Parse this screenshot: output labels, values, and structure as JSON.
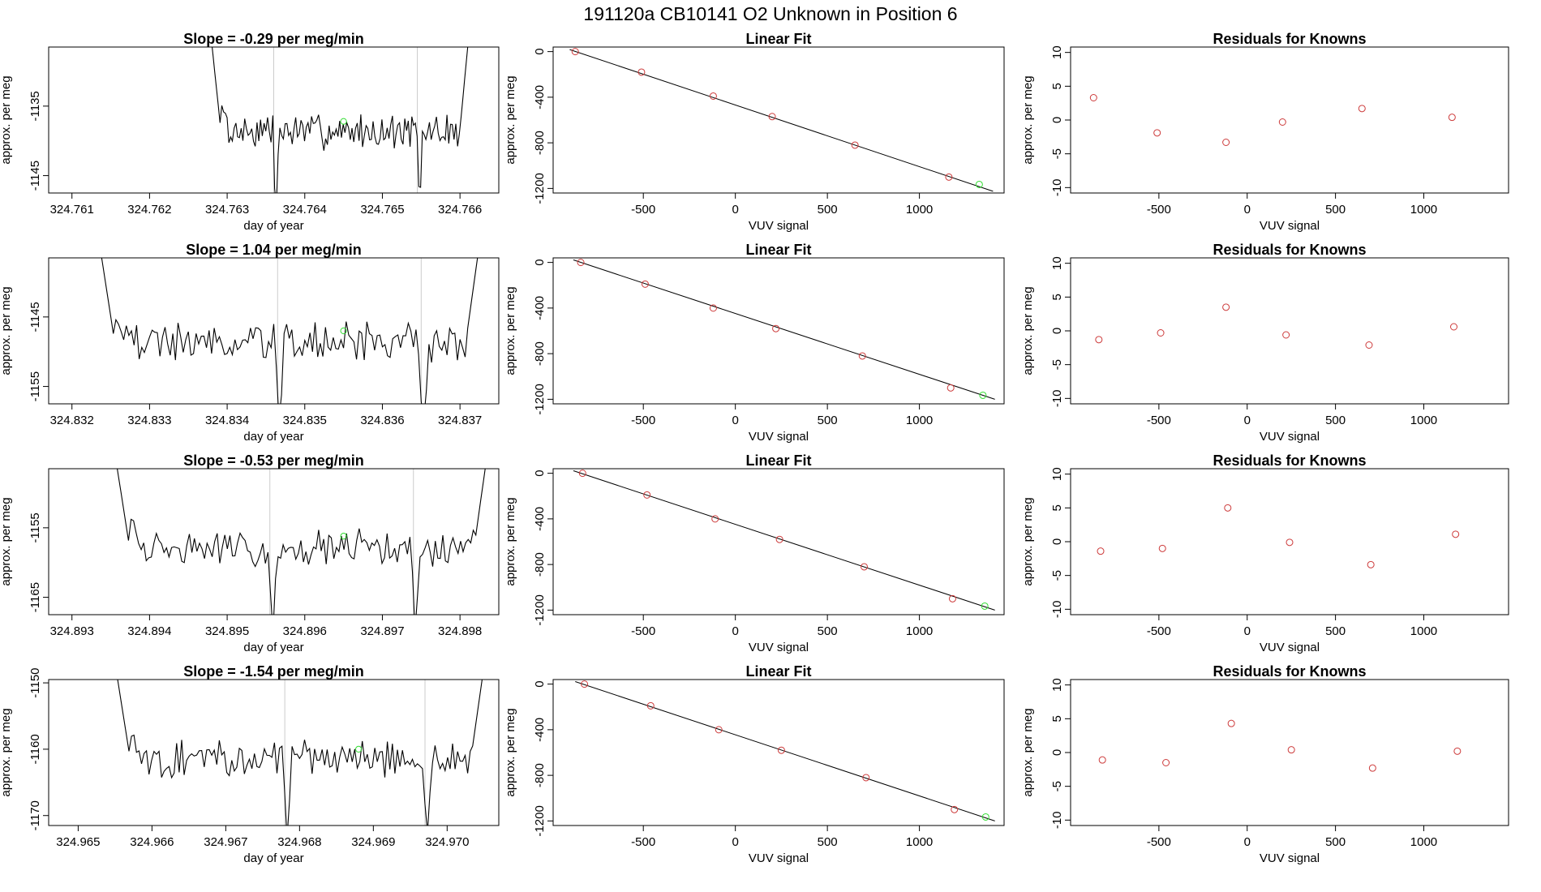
{
  "figure": {
    "title": "191120a      CB10141    O2 Unknown in Position  6",
    "colors": {
      "line": "#000000",
      "known_point": "#cd3b3b",
      "unknown_point": "#33dd33",
      "divider": "#cccccc"
    }
  },
  "chart_data": [
    {
      "type": "line",
      "panel": "drift",
      "row": 1,
      "title": "Slope =  -0.29  per meg/min",
      "xlabel": "day of year",
      "ylabel": "approx. per meg",
      "xticks": [
        "324.761",
        "324.762",
        "324.763",
        "324.764",
        "324.765",
        "324.766"
      ],
      "xlim": [
        324.7607,
        324.7665
      ],
      "yticks": [
        "-1135",
        "-1145"
      ],
      "ylim": [
        -1147.5,
        -1126.5
      ],
      "vlines": [
        324.7636,
        324.76545
      ],
      "start": 324.76275,
      "end": 324.76615,
      "level": -1138.6,
      "amp": 2.1,
      "seed": 7,
      "marker": {
        "x": 324.7645,
        "y": -1137.2
      }
    },
    {
      "type": "line",
      "panel": "drift",
      "row": 2,
      "title": "Slope =  1.04  per meg/min",
      "xlabel": "day of year",
      "ylabel": "approx. per meg",
      "xticks": [
        "324.832",
        "324.833",
        "324.834",
        "324.835",
        "324.836",
        "324.837"
      ],
      "xlim": [
        324.8317,
        324.8375
      ],
      "yticks": [
        "-1145",
        "-1155"
      ],
      "ylim": [
        -1157.5,
        -1136.5
      ],
      "vlines": [
        324.83465,
        324.8365
      ],
      "start": 324.8323,
      "end": 324.8373,
      "level": -1148.6,
      "amp": 2.4,
      "seed": 19,
      "marker": {
        "x": 324.8355,
        "y": -1147.0
      }
    },
    {
      "type": "line",
      "panel": "drift",
      "row": 3,
      "title": "Slope =  -0.53  per meg/min",
      "xlabel": "day of year",
      "ylabel": "approx. per meg",
      "xticks": [
        "324.893",
        "324.894",
        "324.895",
        "324.896",
        "324.897",
        "324.898"
      ],
      "xlim": [
        324.8927,
        324.8985
      ],
      "yticks": [
        "-1155",
        "-1165"
      ],
      "ylim": [
        -1167.5,
        -1146.5
      ],
      "vlines": [
        324.89555,
        324.8974
      ],
      "start": 324.8935,
      "end": 324.8984,
      "level": -1158.0,
      "amp": 2.2,
      "seed": 31,
      "marker": {
        "x": 324.8965,
        "y": -1156.2
      }
    },
    {
      "type": "line",
      "panel": "drift",
      "row": 4,
      "title": "Slope =  -1.54  per meg/min",
      "xlabel": "day of year",
      "ylabel": "approx. per meg",
      "xticks": [
        "324.965",
        "324.966",
        "324.967",
        "324.968",
        "324.969",
        "324.970"
      ],
      "xlim": [
        324.9646,
        324.9707
      ],
      "yticks": [
        "-1150",
        "-1160",
        "-1170"
      ],
      "ylim": [
        -1171.5,
        -1149.5
      ],
      "vlines": [
        324.9678,
        324.9697
      ],
      "start": 324.96545,
      "end": 324.97055,
      "level": -1161.5,
      "amp": 2.3,
      "seed": 43,
      "marker": {
        "x": 324.9688,
        "y": -1160.0
      }
    },
    {
      "type": "scatter",
      "panel": "fit",
      "row": 1,
      "title": "Linear Fit",
      "xlabel": "VUV signal",
      "ylabel": "approx. per meg",
      "xticks": [
        -500,
        0,
        500,
        1000
      ],
      "yticks": [
        0,
        -400,
        -800,
        -1200
      ],
      "xlim": [
        -990,
        1460
      ],
      "ylim": [
        -1240,
        40
      ],
      "x": [
        -870,
        -510,
        -120,
        200,
        650,
        1160
      ],
      "y": [
        0,
        -180,
        -390,
        -570,
        -820,
        -1100
      ],
      "fit_line": {
        "x": [
          -900,
          1400
        ],
        "y": [
          18,
          -1225
        ]
      },
      "unknown": {
        "x": 1325,
        "y": -1165
      }
    },
    {
      "type": "scatter",
      "panel": "fit",
      "row": 2,
      "title": "Linear Fit",
      "xlabel": "VUV signal",
      "ylabel": "approx. per meg",
      "xticks": [
        -500,
        0,
        500,
        1000
      ],
      "yticks": [
        0,
        -400,
        -800,
        -1200
      ],
      "xlim": [
        -990,
        1460
      ],
      "ylim": [
        -1240,
        40
      ],
      "x": [
        -840,
        -490,
        -120,
        220,
        690,
        1170
      ],
      "y": [
        0,
        -190,
        -400,
        -580,
        -820,
        -1100
      ],
      "fit_line": {
        "x": [
          -880,
          1410
        ],
        "y": [
          22,
          -1200
        ]
      },
      "unknown": {
        "x": 1345,
        "y": -1165
      }
    },
    {
      "type": "scatter",
      "panel": "fit",
      "row": 3,
      "title": "Linear Fit",
      "xlabel": "VUV signal",
      "ylabel": "approx. per meg",
      "xticks": [
        -500,
        0,
        500,
        1000
      ],
      "yticks": [
        0,
        -400,
        -800,
        -1200
      ],
      "xlim": [
        -990,
        1460
      ],
      "ylim": [
        -1240,
        40
      ],
      "x": [
        -830,
        -480,
        -110,
        240,
        700,
        1180
      ],
      "y": [
        0,
        -190,
        -400,
        -580,
        -820,
        -1100
      ],
      "fit_line": {
        "x": [
          -880,
          1410
        ],
        "y": [
          22,
          -1200
        ]
      },
      "unknown": {
        "x": 1355,
        "y": -1165
      }
    },
    {
      "type": "scatter",
      "panel": "fit",
      "row": 4,
      "title": "Linear Fit",
      "xlabel": "VUV signal",
      "ylabel": "approx. per meg",
      "xticks": [
        -500,
        0,
        500,
        1000
      ],
      "yticks": [
        0,
        -400,
        -800,
        -1200
      ],
      "xlim": [
        -990,
        1460
      ],
      "ylim": [
        -1240,
        40
      ],
      "x": [
        -820,
        -460,
        -90,
        250,
        710,
        1190
      ],
      "y": [
        0,
        -190,
        -400,
        -580,
        -820,
        -1100
      ],
      "fit_line": {
        "x": [
          -870,
          1410
        ],
        "y": [
          22,
          -1200
        ]
      },
      "unknown": {
        "x": 1360,
        "y": -1165
      }
    },
    {
      "type": "scatter",
      "panel": "residuals",
      "row": 1,
      "title": "Residuals for Knowns",
      "xlabel": "VUV signal",
      "ylabel": "approx. per meg",
      "xticks": [
        -500,
        0,
        500,
        1000
      ],
      "yticks": [
        10,
        5,
        0,
        -5,
        -10
      ],
      "xlim": [
        -1000,
        1480
      ],
      "ylim": [
        -10.8,
        10.8
      ],
      "x": [
        -870,
        -510,
        -120,
        200,
        650,
        1160
      ],
      "y": [
        3.3,
        -1.9,
        -3.3,
        -0.3,
        1.7,
        0.4
      ]
    },
    {
      "type": "scatter",
      "panel": "residuals",
      "row": 2,
      "title": "Residuals for Knowns",
      "xlabel": "VUV signal",
      "ylabel": "approx. per meg",
      "xticks": [
        -500,
        0,
        500,
        1000
      ],
      "yticks": [
        10,
        5,
        0,
        -5,
        -10
      ],
      "xlim": [
        -1000,
        1480
      ],
      "ylim": [
        -10.8,
        10.8
      ],
      "x": [
        -840,
        -490,
        -120,
        220,
        690,
        1170
      ],
      "y": [
        -1.3,
        -0.3,
        3.5,
        -0.6,
        -2.1,
        0.6
      ]
    },
    {
      "type": "scatter",
      "panel": "residuals",
      "row": 3,
      "title": "Residuals for Knowns",
      "xlabel": "VUV signal",
      "ylabel": "approx. per meg",
      "xticks": [
        -500,
        0,
        500,
        1000
      ],
      "yticks": [
        10,
        5,
        0,
        -5,
        -10
      ],
      "xlim": [
        -1000,
        1480
      ],
      "ylim": [
        -10.8,
        10.8
      ],
      "x": [
        -830,
        -480,
        -110,
        240,
        700,
        1180
      ],
      "y": [
        -1.4,
        -1.0,
        5.0,
        -0.1,
        -3.4,
        1.1
      ]
    },
    {
      "type": "scatter",
      "panel": "residuals",
      "row": 4,
      "title": "Residuals for Knowns",
      "xlabel": "VUV signal",
      "ylabel": "approx. per meg",
      "xticks": [
        -500,
        0,
        500,
        1000
      ],
      "yticks": [
        10,
        5,
        0,
        -5,
        -10
      ],
      "xlim": [
        -1000,
        1480
      ],
      "ylim": [
        -10.8,
        10.8
      ],
      "x": [
        -820,
        -460,
        -90,
        250,
        710,
        1190
      ],
      "y": [
        -1.1,
        -1.5,
        4.3,
        0.4,
        -2.3,
        0.2
      ]
    }
  ]
}
